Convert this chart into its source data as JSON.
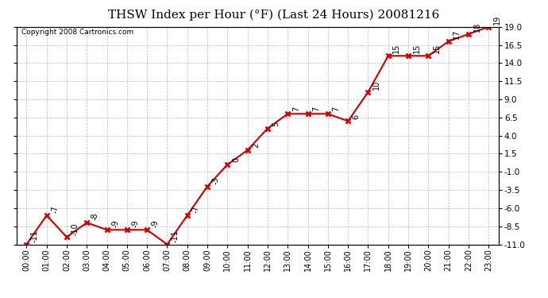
{
  "title": "THSW Index per Hour (°F) (Last 24 Hours) 20081216",
  "copyright": "Copyright 2008 Cartronics.com",
  "hours": [
    "00:00",
    "01:00",
    "02:00",
    "03:00",
    "04:00",
    "05:00",
    "06:00",
    "07:00",
    "08:00",
    "09:00",
    "10:00",
    "11:00",
    "12:00",
    "13:00",
    "14:00",
    "15:00",
    "16:00",
    "17:00",
    "18:00",
    "19:00",
    "20:00",
    "21:00",
    "22:00",
    "23:00"
  ],
  "values": [
    -11,
    -7,
    -10,
    -8,
    -9,
    -9,
    -9,
    -11,
    -7,
    -3,
    0,
    2,
    5,
    7,
    7,
    7,
    6,
    10,
    15,
    15,
    15,
    17,
    18,
    19
  ],
  "ylim": [
    -11,
    19
  ],
  "yticks": [
    -11.0,
    -8.5,
    -6.0,
    -3.5,
    -1.0,
    1.5,
    4.0,
    6.5,
    9.0,
    11.5,
    14.0,
    16.5,
    19.0
  ],
  "line_color": "#cc0000",
  "marker_color": "#cc0000",
  "bg_color": "#ffffff",
  "grid_color": "#bbbbbb",
  "title_fontsize": 11,
  "copyright_fontsize": 6.5,
  "label_fontsize": 7,
  "tick_fontsize": 7.5,
  "annot_fontsize": 7
}
